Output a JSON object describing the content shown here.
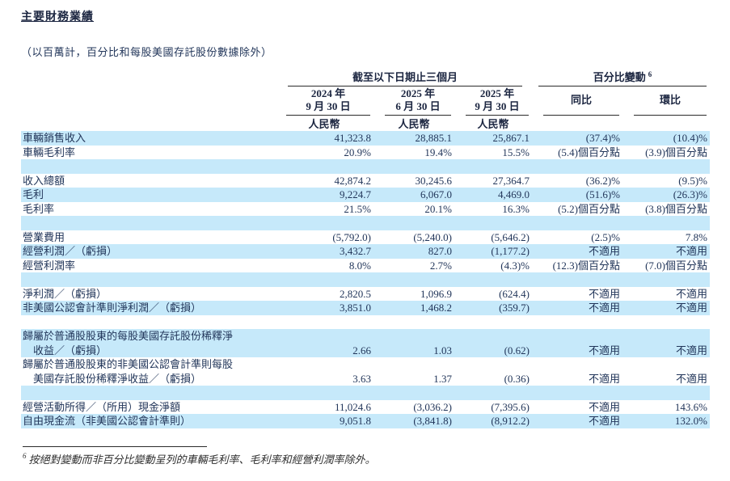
{
  "page": {
    "title": "主要財務業績",
    "subtitle": "（以百萬計，百分比和每股美國存託股份數據除外）"
  },
  "table": {
    "group_headers": [
      {
        "label": "截至以下日期止三個月",
        "span": 3
      },
      {
        "label": "百分比變動",
        "sup": "6",
        "span": 2
      }
    ],
    "column_headers": [
      "2024 年\n9 月 30 日",
      "2025 年\n6 月 30 日",
      "2025 年\n9 月 30 日",
      "同比",
      "環比"
    ],
    "currency_row": [
      "人民幣",
      "人民幣",
      "人民幣"
    ],
    "rows": [
      {
        "label": "車輛銷售收入",
        "values": [
          "41,323.8",
          "28,885.1",
          "25,867.1",
          "(37.4)%",
          "(10.4)%"
        ]
      },
      {
        "label": "車輛毛利率",
        "values": [
          "20.9%",
          "19.4%",
          "15.5%",
          "(5.4)個百分點",
          "(3.9)個百分點"
        ]
      },
      {
        "spacer": true
      },
      {
        "label": "收入總額",
        "values": [
          "42,874.2",
          "30,245.6",
          "27,364.7",
          "(36.2)%",
          "(9.5)%"
        ]
      },
      {
        "label": "毛利",
        "values": [
          "9,224.7",
          "6,067.0",
          "4,469.0",
          "(51.6)%",
          "(26.3)%"
        ]
      },
      {
        "label": "毛利率",
        "values": [
          "21.5%",
          "20.1%",
          "16.3%",
          "(5.2)個百分點",
          "(3.8)個百分點"
        ]
      },
      {
        "spacer": true
      },
      {
        "label": "營業費用",
        "values": [
          "(5,792.0)",
          "(5,240.0)",
          "(5,646.2)",
          "(2.5)%",
          "7.8%"
        ]
      },
      {
        "label": "經營利潤／（虧損）",
        "values": [
          "3,432.7",
          "827.0",
          "(1,177.2)",
          "不適用",
          "不適用"
        ]
      },
      {
        "label": "經營利潤率",
        "values": [
          "8.0%",
          "2.7%",
          "(4.3)%",
          "(12.3)個百分點",
          "(7.0)個百分點"
        ]
      },
      {
        "spacer": true
      },
      {
        "label": "淨利潤／（虧損）",
        "values": [
          "2,820.5",
          "1,096.9",
          "(624.4)",
          "不適用",
          "不適用"
        ]
      },
      {
        "label": "非美國公認會計準則淨利潤／（虧損）",
        "values": [
          "3,851.0",
          "1,468.2",
          "(359.7)",
          "不適用",
          "不適用"
        ]
      },
      {
        "spacer": true
      },
      {
        "label": "歸屬於普通股股東的每股美國存託股份稀釋淨\n　收益／（虧損）",
        "values": [
          "2.66",
          "1.03",
          "(0.62)",
          "不適用",
          "不適用"
        ]
      },
      {
        "label": "歸屬於普通股股東的非美國公認會計準則每股\n　美國存託股份稀釋淨收益／（虧損）",
        "values": [
          "3.63",
          "1.37",
          "(0.36)",
          "不適用",
          "不適用"
        ]
      },
      {
        "spacer": true
      },
      {
        "label": "經營活動所得／（所用）現金淨額",
        "values": [
          "11,024.6",
          "(3,036.2)",
          "(7,395.6)",
          "不適用",
          "143.6%"
        ]
      },
      {
        "label": "自由現金流（非美國公認會計準則）",
        "values": [
          "9,051.8",
          "(3,841.8)",
          "(8,912.2)",
          "不適用",
          "132.0%"
        ]
      }
    ]
  },
  "footnote": {
    "marker": "6",
    "text": "按絕對變動而非百分比變動呈列的車輛毛利率、毛利率和經營利潤率除外。"
  },
  "colors": {
    "stripe_blue": "#c6e9fa",
    "text_navy": "#22365a"
  }
}
